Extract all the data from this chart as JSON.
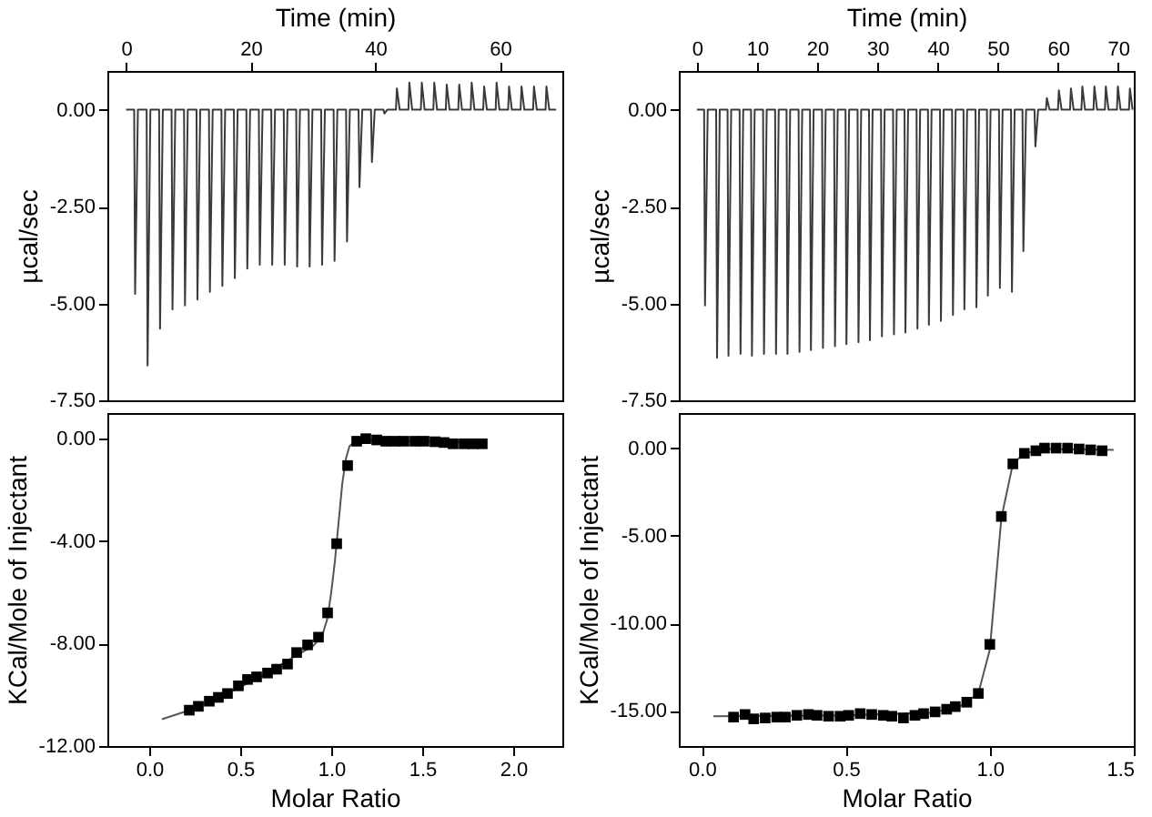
{
  "chart_data": [
    {
      "type": "line",
      "xlabel": "Time (min)",
      "ylabel": "µcal/sec",
      "xlim": [
        -3,
        70
      ],
      "xticks": [
        0,
        20,
        40,
        60
      ],
      "ylim": [
        -7.5,
        1.0
      ],
      "yticks": [
        {
          "value": 0,
          "label": "0.00"
        },
        {
          "value": -2.5,
          "label": "-2.50"
        },
        {
          "value": -5,
          "label": "-5.00"
        },
        {
          "value": -7.5,
          "label": "-7.50"
        }
      ],
      "marker": "none",
      "line_style": "solid",
      "grid": false,
      "series": [
        {
          "color": "#3a3a3a",
          "x": [
            0,
            1.3,
            1.45,
            1.9,
            3.3,
            3.45,
            3.9,
            5.3,
            5.45,
            5.9,
            7.3,
            7.45,
            7.9,
            9.3,
            9.45,
            9.9,
            11.3,
            11.45,
            11.9,
            13.3,
            13.45,
            13.9,
            15.3,
            15.45,
            15.9,
            17.3,
            17.45,
            17.9,
            19.3,
            19.45,
            19.9,
            21.3,
            21.45,
            21.9,
            23.3,
            23.45,
            23.9,
            25.3,
            25.45,
            25.9,
            27.3,
            27.45,
            27.9,
            29.3,
            29.45,
            29.9,
            31.3,
            31.45,
            31.9,
            33.3,
            33.45,
            33.9,
            35.3,
            35.45,
            35.9,
            37.3,
            37.45,
            37.9,
            39.3,
            39.45,
            39.9,
            41.3,
            41.45,
            41.9,
            43.3,
            43.45,
            43.9,
            45.3,
            45.45,
            45.9,
            47.3,
            47.45,
            47.9,
            49.3,
            49.45,
            49.9,
            51.3,
            51.45,
            51.9,
            53.3,
            53.45,
            53.9,
            55.3,
            55.45,
            55.9,
            57.3,
            57.45,
            57.9,
            59.3,
            59.45,
            59.9,
            61.3,
            61.45,
            61.9,
            63.3,
            63.45,
            63.9,
            65.3,
            65.45,
            65.9,
            67.3,
            67.45,
            67.9,
            69
          ],
          "values": [
            0,
            0,
            -4.75,
            0,
            0,
            -6.6,
            0,
            0,
            -5.65,
            0,
            0,
            -5.15,
            0,
            0,
            -5.05,
            0,
            0,
            -4.9,
            0,
            0,
            -4.7,
            0,
            0,
            -4.55,
            0,
            0,
            -4.35,
            0,
            0,
            -4.1,
            0,
            0,
            -4.0,
            0,
            0,
            -4.0,
            0,
            0,
            -4.0,
            0,
            0,
            -4.05,
            0,
            0,
            -4.05,
            0,
            0,
            -4.0,
            0,
            0,
            -3.9,
            0,
            0,
            -3.4,
            0,
            0,
            -2.0,
            0,
            0,
            -1.35,
            0,
            0,
            -0.1,
            0,
            0,
            0.55,
            0,
            0,
            0.7,
            0,
            0,
            0.7,
            0,
            0,
            0.7,
            0,
            0,
            0.65,
            0,
            0,
            0.65,
            0,
            0,
            0.7,
            0,
            0,
            0.6,
            0,
            0,
            0.7,
            0,
            0,
            0.6,
            0,
            0,
            0.6,
            0,
            0,
            0.6,
            0,
            0,
            0.6,
            0,
            0
          ]
        }
      ]
    },
    {
      "type": "line",
      "xlabel": "Time (min)",
      "ylabel": "µcal/sec",
      "xlim": [
        -3,
        72.6
      ],
      "xticks": [
        0,
        10,
        20,
        30,
        40,
        50,
        60,
        70
      ],
      "ylim": [
        -7.5,
        1.0
      ],
      "yticks": [
        {
          "value": 0,
          "label": "0.00"
        },
        {
          "value": -2.5,
          "label": "-2.50"
        },
        {
          "value": -5,
          "label": "-5.00"
        },
        {
          "value": -7.5,
          "label": "-7.50"
        }
      ],
      "marker": "none",
      "line_style": "solid",
      "grid": false,
      "series": [
        {
          "color": "#3a3a3a",
          "x": [
            0,
            1.2,
            1.35,
            1.8,
            3.2,
            3.35,
            3.8,
            5.1,
            5.25,
            5.7,
            7.1,
            7.25,
            7.7,
            9.0,
            9.15,
            9.6,
            11.0,
            11.15,
            11.6,
            13.0,
            13.15,
            13.6,
            14.9,
            15.05,
            15.5,
            16.9,
            17.05,
            17.5,
            18.8,
            18.95,
            19.4,
            20.8,
            20.95,
            21.4,
            22.8,
            22.95,
            23.4,
            24.7,
            24.85,
            25.3,
            26.7,
            26.85,
            27.3,
            28.6,
            28.75,
            29.2,
            30.6,
            30.75,
            31.2,
            32.6,
            32.75,
            33.2,
            34.5,
            34.65,
            35.1,
            36.5,
            36.65,
            37.1,
            38.4,
            38.55,
            39.0,
            40.4,
            40.55,
            41.0,
            42.4,
            42.55,
            43.0,
            44.3,
            44.45,
            44.9,
            46.3,
            46.45,
            46.9,
            48.2,
            48.35,
            48.8,
            50.2,
            50.35,
            50.8,
            52.2,
            52.35,
            52.8,
            54.1,
            54.25,
            54.7,
            56.1,
            56.25,
            56.7,
            58.0,
            58.15,
            58.6,
            60.0,
            60.15,
            60.6,
            62.0,
            62.15,
            62.6,
            63.9,
            64.05,
            64.5,
            65.9,
            66.05,
            66.5,
            67.8,
            67.95,
            68.4,
            69.8,
            69.95,
            70.4,
            71.8,
            71.95,
            72.4
          ],
          "values": [
            0,
            0,
            -5.05,
            0,
            0,
            -6.4,
            0,
            0,
            -6.35,
            0,
            0,
            -6.3,
            0,
            0,
            -6.35,
            0,
            0,
            -6.3,
            0,
            0,
            -6.3,
            0,
            0,
            -6.3,
            0,
            0,
            -6.25,
            0,
            0,
            -6.2,
            0,
            0,
            -6.15,
            0,
            0,
            -6.1,
            0,
            0,
            -6.05,
            0,
            0,
            -6.0,
            0,
            0,
            -5.95,
            0,
            0,
            -5.85,
            0,
            0,
            -5.8,
            0,
            0,
            -5.75,
            0,
            0,
            -5.65,
            0,
            0,
            -5.55,
            0,
            0,
            -5.45,
            0,
            0,
            -5.3,
            0,
            0,
            -5.15,
            0,
            0,
            -5.1,
            0,
            0,
            -4.8,
            0,
            0,
            -4.6,
            0,
            0,
            -4.7,
            0,
            0,
            -3.65,
            0,
            0,
            -0.95,
            0,
            0,
            0.3,
            0,
            0,
            0.5,
            0,
            0,
            0.55,
            0,
            0,
            0.6,
            0,
            0,
            0.6,
            0,
            0,
            0.6,
            0,
            0,
            0.6,
            0,
            0,
            0.55,
            0
          ]
        }
      ]
    },
    {
      "type": "scatter",
      "xlabel": "Molar Ratio",
      "ylabel": "KCal/Mole of Injectant",
      "xlim": [
        -0.23,
        2.27
      ],
      "xticks": [
        {
          "value": 0,
          "label": "0.0"
        },
        0.5,
        {
          "value": 1,
          "label": "1.0"
        },
        1.5,
        {
          "value": 2,
          "label": "2.0"
        }
      ],
      "ylim": [
        -12,
        1.0
      ],
      "yticks": [
        {
          "value": 0,
          "label": "0.00"
        },
        {
          "value": -4,
          "label": "-4.00"
        },
        {
          "value": -8,
          "label": "-8.00"
        },
        {
          "value": -12,
          "label": "-12.00"
        }
      ],
      "marker": "square",
      "grid": false,
      "series": [
        {
          "type": "line",
          "marker": "none",
          "line_style": "solid",
          "color": "#555555",
          "x": [
            0.07,
            0.2,
            0.4,
            0.6,
            0.8,
            0.9,
            0.95,
            0.98,
            1.0,
            1.02,
            1.04,
            1.06,
            1.08,
            1.1,
            1.13,
            1.2,
            1.5,
            1.85
          ],
          "values": [
            -10.95,
            -10.65,
            -10.05,
            -9.35,
            -8.5,
            -8.1,
            -7.7,
            -7.0,
            -6.0,
            -4.8,
            -3.3,
            -1.8,
            -0.8,
            -0.3,
            -0.1,
            -0.05,
            -0.1,
            -0.15
          ]
        },
        {
          "color": "#000000",
          "x": [
            0.22,
            0.27,
            0.33,
            0.38,
            0.43,
            0.49,
            0.54,
            0.59,
            0.65,
            0.7,
            0.76,
            0.81,
            0.87,
            0.93,
            0.98,
            1.03,
            1.09,
            1.14,
            1.19,
            1.25,
            1.3,
            1.35,
            1.4,
            1.46,
            1.51,
            1.57,
            1.62,
            1.67,
            1.73,
            1.78,
            1.83
          ],
          "values": [
            -10.6,
            -10.45,
            -10.25,
            -10.1,
            -9.95,
            -9.65,
            -9.4,
            -9.3,
            -9.15,
            -9.0,
            -8.8,
            -8.35,
            -8.05,
            -7.75,
            -6.8,
            -4.1,
            -1.05,
            -0.1,
            0.0,
            -0.05,
            -0.1,
            -0.1,
            -0.1,
            -0.1,
            -0.1,
            -0.12,
            -0.15,
            -0.2,
            -0.2,
            -0.2,
            -0.2
          ]
        }
      ]
    },
    {
      "type": "scatter",
      "xlabel": "Molar Ratio",
      "ylabel": "KCal/Mole of Injectant",
      "xlim": [
        -0.08,
        1.5
      ],
      "xticks": [
        {
          "value": 0,
          "label": "0.0"
        },
        0.5,
        {
          "value": 1,
          "label": "1.0"
        },
        1.5
      ],
      "ylim": [
        -17,
        2
      ],
      "yticks": [
        {
          "value": 0,
          "label": "0.00"
        },
        {
          "value": -5,
          "label": "-5.00"
        },
        {
          "value": -10,
          "label": "-10.00"
        },
        {
          "value": -15,
          "label": "-15.00"
        }
      ],
      "marker": "square",
      "grid": false,
      "series": [
        {
          "type": "line",
          "marker": "none",
          "line_style": "solid",
          "color": "#555555",
          "x": [
            0.04,
            0.5,
            0.8,
            0.9,
            0.96,
            1.0,
            1.04,
            1.08,
            1.12,
            1.2,
            1.43
          ],
          "values": [
            -15.3,
            -15.25,
            -15.1,
            -14.7,
            -14.0,
            -11.5,
            -4.0,
            -0.9,
            -0.3,
            -0.05,
            -0.1
          ]
        },
        {
          "color": "#000000",
          "x": [
            0.11,
            0.15,
            0.18,
            0.22,
            0.26,
            0.29,
            0.33,
            0.37,
            0.4,
            0.44,
            0.48,
            0.51,
            0.55,
            0.59,
            0.63,
            0.66,
            0.7,
            0.74,
            0.77,
            0.81,
            0.85,
            0.88,
            0.92,
            0.96,
            1.0,
            1.04,
            1.08,
            1.12,
            1.16,
            1.19,
            1.23,
            1.27,
            1.31,
            1.35,
            1.39
          ],
          "values": [
            -15.35,
            -15.2,
            -15.45,
            -15.4,
            -15.35,
            -15.35,
            -15.25,
            -15.2,
            -15.25,
            -15.3,
            -15.3,
            -15.25,
            -15.15,
            -15.2,
            -15.25,
            -15.3,
            -15.4,
            -15.25,
            -15.15,
            -15.05,
            -14.9,
            -14.75,
            -14.5,
            -14.0,
            -11.2,
            -3.9,
            -0.9,
            -0.3,
            -0.15,
            0.0,
            0.0,
            0.0,
            -0.05,
            -0.1,
            -0.15
          ]
        }
      ]
    }
  ]
}
